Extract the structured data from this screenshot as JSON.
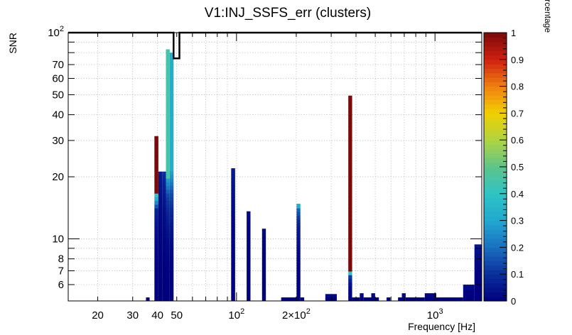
{
  "chart_data": {
    "type": "heatmap",
    "title": "V1:INJ_SSFS_err (clusters)",
    "xlabel": "Frequency [Hz]",
    "ylabel": "SNR",
    "colorbar_label": "use-percentage",
    "xscale": "log",
    "yscale": "log",
    "xlim": [
      14.2,
      1720
    ],
    "ylim": [
      5,
      100
    ],
    "zlim": [
      0,
      1
    ],
    "x_tick_labels": [
      {
        "value": 20,
        "label": "20"
      },
      {
        "value": 30,
        "label": "30"
      },
      {
        "value": 40,
        "label": "40"
      },
      {
        "value": 50,
        "label": "50"
      },
      {
        "value": 100,
        "label": "10",
        "exponent": "2"
      },
      {
        "value": 200,
        "label": "2×10",
        "exponent": "2"
      },
      {
        "value": 1000,
        "label": "10",
        "exponent": "3"
      }
    ],
    "y_tick_labels": [
      {
        "value": 6,
        "label": "6"
      },
      {
        "value": 7,
        "label": "7"
      },
      {
        "value": 8,
        "label": "8"
      },
      {
        "value": 10,
        "label": "10"
      },
      {
        "value": 20,
        "label": "20"
      },
      {
        "value": 30,
        "label": "30"
      },
      {
        "value": 40,
        "label": "40"
      },
      {
        "value": 50,
        "label": "50"
      },
      {
        "value": 60,
        "label": "60"
      },
      {
        "value": 70,
        "label": "70"
      },
      {
        "value": 100,
        "label": "10",
        "exponent": "2"
      }
    ],
    "colorbar_ticks": [
      "0",
      "0.1",
      "0.2",
      "0.3",
      "0.4",
      "0.5",
      "0.6",
      "0.7",
      "0.8",
      "0.9",
      "1"
    ],
    "colormap": [
      "#00007f",
      "#0a2f9a",
      "#1a6fc0",
      "#22a8d0",
      "#2ec4c4",
      "#5ec48a",
      "#b0d440",
      "#f0d000",
      "#f08010",
      "#d02010",
      "#7a0a0a"
    ],
    "columns": [
      {
        "f_lo": 35.0,
        "f_hi": 36.5,
        "top": 5.2,
        "hot": null,
        "hot_z": 0,
        "base_z": 0.02
      },
      {
        "f_lo": 38.6,
        "f_hi": 40.4,
        "top": 31.5,
        "hot": 16.5,
        "hot_z": 1.0,
        "base_z": 0.12
      },
      {
        "f_lo": 40.4,
        "f_hi": 42.2,
        "top": 21.2,
        "hot": null,
        "hot_z": 0,
        "base_z": 0.06
      },
      {
        "f_lo": 42.2,
        "f_hi": 44.1,
        "top": 21.2,
        "hot": null,
        "hot_z": 0,
        "base_z": 0.1
      },
      {
        "f_lo": 44.1,
        "f_hi": 46.1,
        "top": 83.0,
        "hot": 20.0,
        "hot_z": 0.45,
        "base_z": 0.22
      },
      {
        "f_lo": 46.1,
        "f_hi": 48.2,
        "top": 80.0,
        "hot": 21.0,
        "hot_z": 0.32,
        "base_z": 0.26
      },
      {
        "f_lo": 94.0,
        "f_hi": 98.4,
        "top": 22.0,
        "hot": null,
        "hot_z": 0,
        "base_z": 0.06
      },
      {
        "f_lo": 112.5,
        "f_hi": 117.6,
        "top": 13.6,
        "hot": null,
        "hot_z": 0,
        "base_z": 0.02
      },
      {
        "f_lo": 134.5,
        "f_hi": 140.6,
        "top": 11.2,
        "hot": null,
        "hot_z": 0,
        "base_z": 0.02
      },
      {
        "f_lo": 167.9,
        "f_hi": 200.7,
        "top": 5.2,
        "hot": null,
        "hot_z": 0,
        "base_z": 0.02
      },
      {
        "f_lo": 200.7,
        "f_hi": 209.8,
        "top": 14.8,
        "hot": 14.0,
        "hot_z": 0.32,
        "base_z": 0.12
      },
      {
        "f_lo": 209.8,
        "f_hi": 219.3,
        "top": 5.2,
        "hot": null,
        "hot_z": 0,
        "base_z": 0.02
      },
      {
        "f_lo": 280.2,
        "f_hi": 320.2,
        "top": 5.4,
        "hot": null,
        "hot_z": 0,
        "base_z": 0.04
      },
      {
        "f_lo": 365.8,
        "f_hi": 382.4,
        "top": 49.5,
        "hot": 6.9,
        "hot_z": 1.0,
        "base_z": 0.2
      },
      {
        "f_lo": 382.4,
        "f_hi": 417.9,
        "top": 5.2,
        "hot": null,
        "hot_z": 0,
        "base_z": 0.02
      },
      {
        "f_lo": 417.9,
        "f_hi": 436.8,
        "top": 5.45,
        "hot": null,
        "hot_z": 0,
        "base_z": 0.04
      },
      {
        "f_lo": 436.8,
        "f_hi": 477.4,
        "top": 5.2,
        "hot": null,
        "hot_z": 0,
        "base_z": 0.02
      },
      {
        "f_lo": 477.4,
        "f_hi": 499.0,
        "top": 5.45,
        "hot": null,
        "hot_z": 0,
        "base_z": 0.04
      },
      {
        "f_lo": 499.0,
        "f_hi": 521.6,
        "top": 5.2,
        "hot": null,
        "hot_z": 0,
        "base_z": 0.02
      },
      {
        "f_lo": 570.1,
        "f_hi": 595.9,
        "top": 5.2,
        "hot": null,
        "hot_z": 0,
        "base_z": 0.02
      },
      {
        "f_lo": 651.3,
        "f_hi": 680.7,
        "top": 5.2,
        "hot": null,
        "hot_z": 0,
        "base_z": 0.02
      },
      {
        "f_lo": 680.7,
        "f_hi": 711.5,
        "top": 5.45,
        "hot": null,
        "hot_z": 0,
        "base_z": 0.04
      },
      {
        "f_lo": 711.5,
        "f_hi": 888.0,
        "top": 5.2,
        "hot": null,
        "hot_z": 0,
        "base_z": 0.02
      },
      {
        "f_lo": 888.0,
        "f_hi": 1014.8,
        "top": 5.45,
        "hot": null,
        "hot_z": 0,
        "base_z": 0.04
      },
      {
        "f_lo": 1014.8,
        "f_hi": 1386.0,
        "top": 5.2,
        "hot": null,
        "hot_z": 0,
        "base_z": 0.02
      },
      {
        "f_lo": 1386.0,
        "f_hi": 1580.0,
        "top": 6.0,
        "hot": null,
        "hot_z": 0,
        "base_z": 0.04
      },
      {
        "f_lo": 1580.0,
        "f_hi": 1720.0,
        "top": 9.4,
        "hot": null,
        "hot_z": 0,
        "base_z": 0.05
      }
    ],
    "outline_freqs": [
      14.2,
      48.2,
      48.2,
      51.6,
      51.6,
      1720
    ],
    "outline_snrs": [
      100,
      100,
      75,
      75,
      100,
      100
    ]
  }
}
